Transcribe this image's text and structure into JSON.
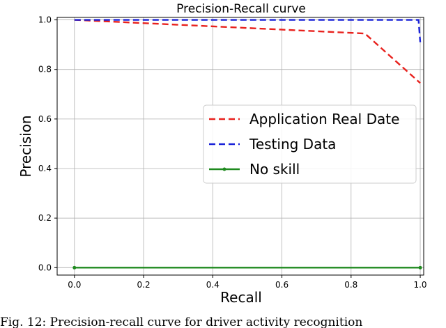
{
  "chart_data": {
    "type": "line",
    "title": "Precision-Recall curve",
    "xlabel": "Recall",
    "ylabel": "Precision",
    "xlim": [
      -0.05,
      1.01
    ],
    "ylim": [
      -0.03,
      1.01
    ],
    "xticks": [
      "0.0",
      "0.2",
      "0.4",
      "0.6",
      "0.8",
      "1.0"
    ],
    "yticks": [
      "0.0",
      "0.2",
      "0.4",
      "0.6",
      "0.8",
      "1.0"
    ],
    "grid": true,
    "legend_position": "center-right",
    "series": [
      {
        "name": "Application Real Date",
        "color": "#e8211d",
        "style": "dashed",
        "marker": "none",
        "x": [
          0.0,
          0.84,
          1.0
        ],
        "y": [
          1.0,
          0.945,
          0.745
        ]
      },
      {
        "name": "Testing Data",
        "color": "#1a22d8",
        "style": "dashed",
        "marker": "none",
        "x": [
          0.0,
          0.995,
          1.0
        ],
        "y": [
          1.0,
          1.0,
          0.91
        ]
      },
      {
        "name": "No skill",
        "color": "#1f8a1f",
        "style": "solid",
        "marker": "dot",
        "x": [
          0.0,
          1.0
        ],
        "y": [
          0.0,
          0.0
        ]
      }
    ]
  },
  "caption": "Fig. 12: Precision-recall curve for driver activity recognition"
}
